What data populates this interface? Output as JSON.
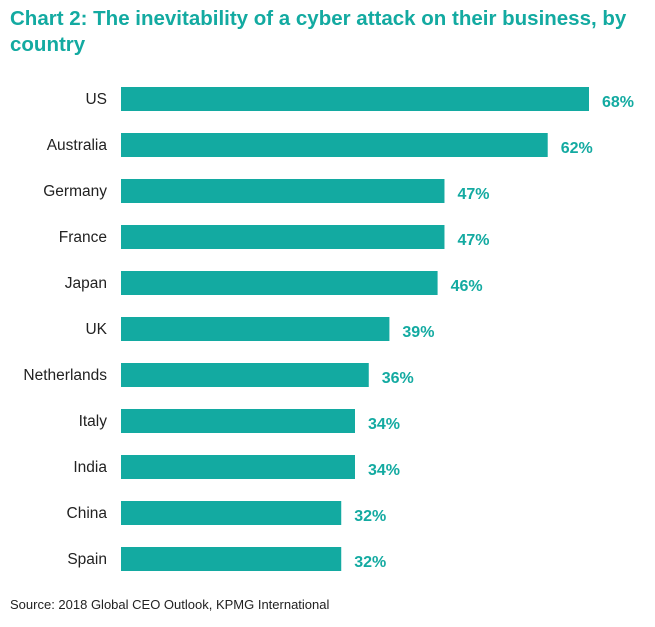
{
  "chart_data": {
    "type": "bar",
    "orientation": "horizontal",
    "title": "Chart 2: The inevitability of a cyber attack on their business, by country",
    "categories": [
      "US",
      "Australia",
      "Germany",
      "France",
      "Japan",
      "UK",
      "Netherlands",
      "Italy",
      "India",
      "China",
      "Spain"
    ],
    "values": [
      68,
      62,
      47,
      47,
      46,
      39,
      36,
      34,
      34,
      32,
      32
    ],
    "value_labels": [
      "68%",
      "62%",
      "47%",
      "47%",
      "46%",
      "39%",
      "36%",
      "34%",
      "34%",
      "32%",
      "32%"
    ],
    "xlabel": "",
    "ylabel": "",
    "xlim": [
      0,
      68
    ],
    "grid": false,
    "legend": "none",
    "bar_color": "#13aaa1",
    "label_color": "#13aaa1",
    "source": "Source: 2018 Global CEO Outlook, KPMG International"
  }
}
